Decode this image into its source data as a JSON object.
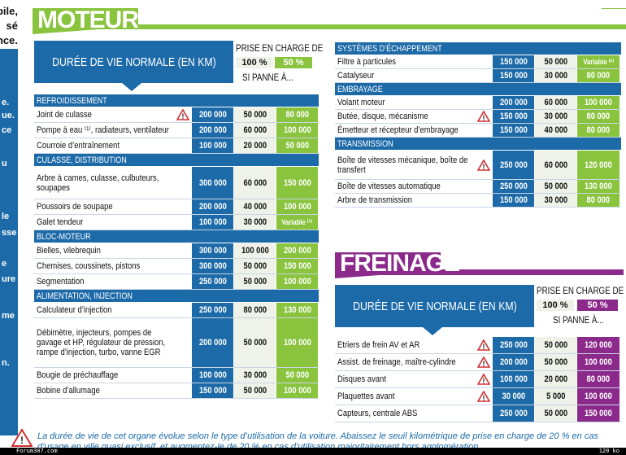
{
  "left_strip": {
    "top_fragments": [
      "bile,",
      "sé",
      "nce."
    ],
    "side_fragments": [
      "e.",
      "ue.",
      "ce",
      "u",
      "le",
      "sse",
      "e",
      "ure",
      "me",
      "n."
    ]
  },
  "colors": {
    "blue": "#1c6aa8",
    "green": "#8ac43f",
    "purple": "#8b2a8a",
    "light": "#eef2e8"
  },
  "moteur": {
    "title": "MOTEUR",
    "header_label": "DURÉE DE VIE NORMALE (EN KM)",
    "prise_title": "PRISE EN CHARGE DE",
    "pct100": "100 %",
    "pct50": "50 %",
    "si_panne": "SI PANNE À...",
    "sections": [
      {
        "name": "REFROIDISSEMENT",
        "rows": [
          {
            "label": "Joint de culasse",
            "warn": true,
            "v": [
              "200 000",
              "50 000",
              "80 000"
            ]
          },
          {
            "label": "Pompe à eau ⁽¹⁾, radiateurs, ventilateur",
            "warn": false,
            "v": [
              "200 000",
              "60 000",
              "100 000"
            ]
          },
          {
            "label": "Courroie d’entraînement",
            "warn": false,
            "v": [
              "100 000",
              "20 000",
              "50 000"
            ]
          }
        ]
      },
      {
        "name": "CULASSE, DISTRIBUTION",
        "rows": [
          {
            "label": "Arbre à cames, culasse, culbuteurs, soupapes",
            "warn": false,
            "v": [
              "300 000",
              "60 000",
              "150 000"
            ],
            "tall": 2
          },
          {
            "label": "Poussoirs de soupape",
            "warn": false,
            "v": [
              "200 000",
              "40 000",
              "100 000"
            ]
          },
          {
            "label": "Galet tendeur",
            "warn": false,
            "v": [
              "100 000",
              "30 000",
              "Variable ⁽¹⁾"
            ]
          }
        ]
      },
      {
        "name": "BLOC-MOTEUR",
        "rows": [
          {
            "label": "Bielles, vilebrequin",
            "warn": false,
            "v": [
              "300 000",
              "100 000",
              "200 000"
            ]
          },
          {
            "label": "Chemises, coussinets, pistons",
            "warn": false,
            "v": [
              "300 000",
              "50 000",
              "150 000"
            ]
          },
          {
            "label": "Segmentation",
            "warn": false,
            "v": [
              "250 000",
              "50 000",
              "100 000"
            ]
          }
        ]
      },
      {
        "name": "ALIMENTATION, INJECTION",
        "rows": [
          {
            "label": "Calculateur d’injection",
            "warn": false,
            "v": [
              "250 000",
              "80 000",
              "130 000"
            ]
          },
          {
            "label": "Débimètre, injecteurs, pompes de gavage et HP, régulateur de pression, rampe d’injection, turbo, vanne EGR",
            "warn": false,
            "v": [
              "200 000",
              "50 000",
              "100 000"
            ],
            "tall": 3
          },
          {
            "label": "Bougie de préchauffage",
            "warn": false,
            "v": [
              "100 000",
              "30 000",
              "50 000"
            ]
          },
          {
            "label": "Bobine d’allumage",
            "warn": false,
            "v": [
              "150 000",
              "50 000",
              "100 000"
            ]
          }
        ]
      }
    ],
    "right_sections": [
      {
        "name": "SYSTÈMES D’ÉCHAPPEMENT",
        "rows": [
          {
            "label": "Filtre à particules",
            "warn": false,
            "v": [
              "150 000",
              "50 000",
              "Variable ⁽²⁾"
            ]
          },
          {
            "label": "Catalyseur",
            "warn": false,
            "v": [
              "150 000",
              "30 000",
              "80 000"
            ]
          }
        ]
      },
      {
        "name": "EMBRAYAGE",
        "rows": [
          {
            "label": "Volant moteur",
            "warn": false,
            "v": [
              "200 000",
              "60 000",
              "100 000"
            ]
          },
          {
            "label": "Butée, disque, mécanisme",
            "warn": true,
            "v": [
              "150 000",
              "30 000",
              "80 000"
            ]
          },
          {
            "label": "Émetteur et récepteur d’embrayage",
            "warn": false,
            "v": [
              "150 000",
              "40 000",
              "80 000"
            ]
          }
        ]
      },
      {
        "name": "TRANSMISSION",
        "rows": [
          {
            "label": "Boîte de vitesses mécanique, boîte de transfert",
            "warn": true,
            "v": [
              "250 000",
              "60 000",
              "120 000"
            ],
            "tall": 2
          },
          {
            "label": "Boîte de vitesses automatique",
            "warn": false,
            "v": [
              "250 000",
              "50 000",
              "130 000"
            ]
          },
          {
            "label": "Arbre de transmission",
            "warn": false,
            "v": [
              "150 000",
              "30 000",
              "80 000"
            ]
          }
        ]
      }
    ]
  },
  "freinage": {
    "title": "FREINAGE",
    "header_label": "DURÉE DE VIE NORMALE (EN KM)",
    "prise_title": "PRISE EN CHARGE DE",
    "pct100": "100 %",
    "pct50": "50 %",
    "si_panne": "SI PANNE À...",
    "rows": [
      {
        "label": "Etriers de frein AV et AR",
        "warn": true,
        "v": [
          "250 000",
          "50 000",
          "120 000"
        ]
      },
      {
        "label": "Assist. de freinage, maître-cylindre",
        "warn": true,
        "v": [
          "200 000",
          "50 000",
          "100 000"
        ]
      },
      {
        "label": "Disques avant",
        "warn": true,
        "v": [
          "100 000",
          "20 000",
          "80 000"
        ]
      },
      {
        "label": "Plaquettes avant",
        "warn": true,
        "v": [
          "30 000",
          "5 000",
          "100 000"
        ]
      },
      {
        "label": "Capteurs, centrale ABS",
        "warn": false,
        "v": [
          "250 000",
          "50 000",
          "150 000"
        ]
      }
    ]
  },
  "note": "La durée de vie de cet organe évolue selon le type d’utilisation de la voiture. Abaissez le seuil kilométrique de prise en charge de 20 % en cas d’usage en ville quasi exclusif, et augmentez-le de 20 % en cas d’utilisation majoritairement hors agglomération.",
  "footer": {
    "left": "Forum307.com",
    "right": "120 ko"
  }
}
